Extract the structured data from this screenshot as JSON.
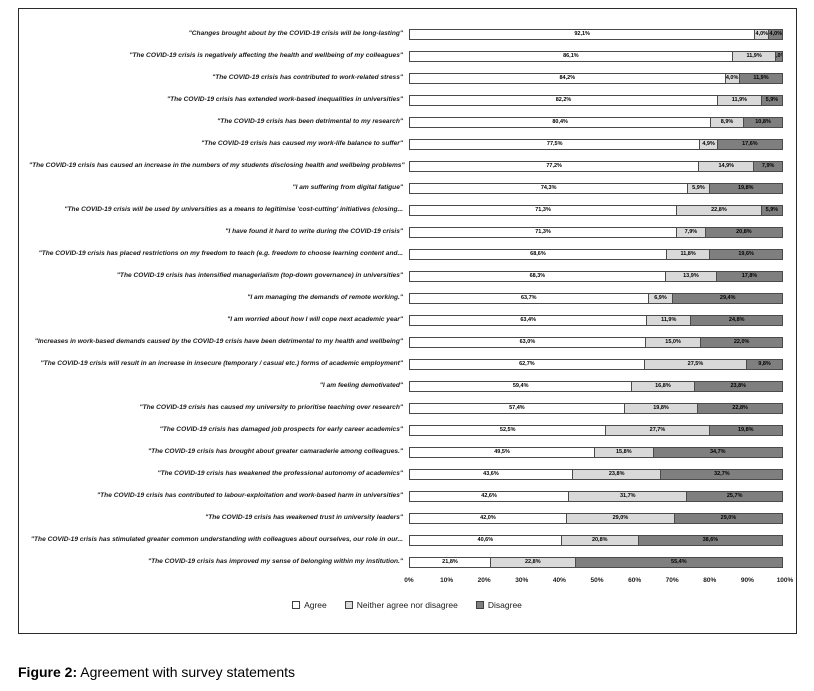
{
  "caption": {
    "label": "Figure 2:",
    "text": " Agreement with survey statements"
  },
  "chart_data": {
    "type": "bar",
    "orientation": "horizontal-stacked",
    "value_format": "decimal-comma-percent",
    "xlim": [
      0,
      100
    ],
    "x_ticks": [
      "0%",
      "10%",
      "20%",
      "30%",
      "40%",
      "50%",
      "60%",
      "70%",
      "80%",
      "90%",
      "100%"
    ],
    "legend_position": "bottom",
    "categories": [
      "\"Changes brought about by the COVID-19 crisis will be long-lasting\"",
      "\"The COVID-19 crisis is negatively affecting the health and wellbeing of my colleagues\"",
      "\"The COVID-19 crisis has contributed to work-related stress\"",
      "\"The COVID-19 crisis has extended work-based inequalities in universities\"",
      "\"The COVID-19 crisis has been detrimental to my research\"",
      "\"The COVID-19 crisis has caused my work-life balance to suffer\"",
      "\"The COVID-19 crisis has caused an increase in the numbers of my students disclosing health and wellbeing problems\"",
      "\"I am suffering from digital fatigue\"",
      "\"The COVID-19 crisis will be used by universities as a means to legitimise 'cost-cutting' initiatives (closing...",
      "\"I have found it hard to write during the COVID-19 crisis\"",
      "\"The COVID-19 crisis has placed restrictions on my freedom to teach (e.g. freedom to choose learning content and...",
      "\"The COVID-19 crisis has intensified managerialism (top-down governance) in universities\"",
      "\"I am managing the demands of remote working.\"",
      "\"I am worried about how I will cope next academic year\"",
      "\"Increases in work-based demands caused by the COVID-19 crisis have been detrimental to my health and wellbeing\"",
      "\"The COVID-19 crisis will result in an increase in insecure (temporary / casual etc.) forms of academic employment\"",
      "\"I am feeling demotivated\"",
      "\"The COVID-19 crisis has caused my university to prioritise teaching over research\"",
      "\"The COVID-19 crisis has damaged job prospects for early career academics\"",
      "\"The COVID-19 crisis has brought about greater camaraderie among colleagues.\"",
      "\"The COVID-19 crisis has weakened the professional autonomy of academics\"",
      "\"The COVID-19 crisis has contributed to labour-exploitation and work-based harm in universities\"",
      "\"The COVID-19 crisis has weakened trust in university leaders\"",
      "\"The COVID-19 crisis has stimulated greater common understanding with colleagues about ourselves, our role in our...",
      "\"The COVID-19 crisis has improved my sense of belonging within my institution.\""
    ],
    "series": [
      {
        "name": "Agree",
        "key": "agree",
        "color": "#ffffff",
        "values": [
          92.1,
          86.1,
          84.2,
          82.2,
          80.4,
          77.5,
          77.2,
          74.3,
          71.3,
          71.3,
          68.6,
          68.3,
          63.7,
          63.4,
          63.0,
          62.7,
          59.4,
          57.4,
          52.5,
          49.5,
          43.6,
          42.6,
          42.0,
          40.6,
          21.8
        ]
      },
      {
        "name": "Neither agree nor disagree",
        "key": "neither",
        "color": "#d9d9d9",
        "values": [
          4.0,
          11.9,
          4.0,
          11.9,
          8.9,
          4.9,
          14.9,
          5.9,
          22.8,
          7.9,
          11.8,
          13.9,
          6.9,
          11.9,
          15.0,
          27.5,
          16.8,
          19.8,
          27.7,
          15.8,
          23.8,
          31.7,
          29.0,
          20.8,
          22.8
        ]
      },
      {
        "name": "Disagree",
        "key": "disagree",
        "color": "#7f7f7f",
        "values": [
          4.0,
          2.0,
          11.9,
          5.9,
          10.8,
          17.6,
          7.9,
          19.8,
          5.9,
          20.8,
          19.6,
          17.8,
          29.4,
          24.8,
          22.0,
          9.8,
          23.8,
          22.8,
          19.8,
          34.7,
          32.7,
          25.7,
          29.0,
          38.6,
          55.4
        ]
      }
    ]
  }
}
